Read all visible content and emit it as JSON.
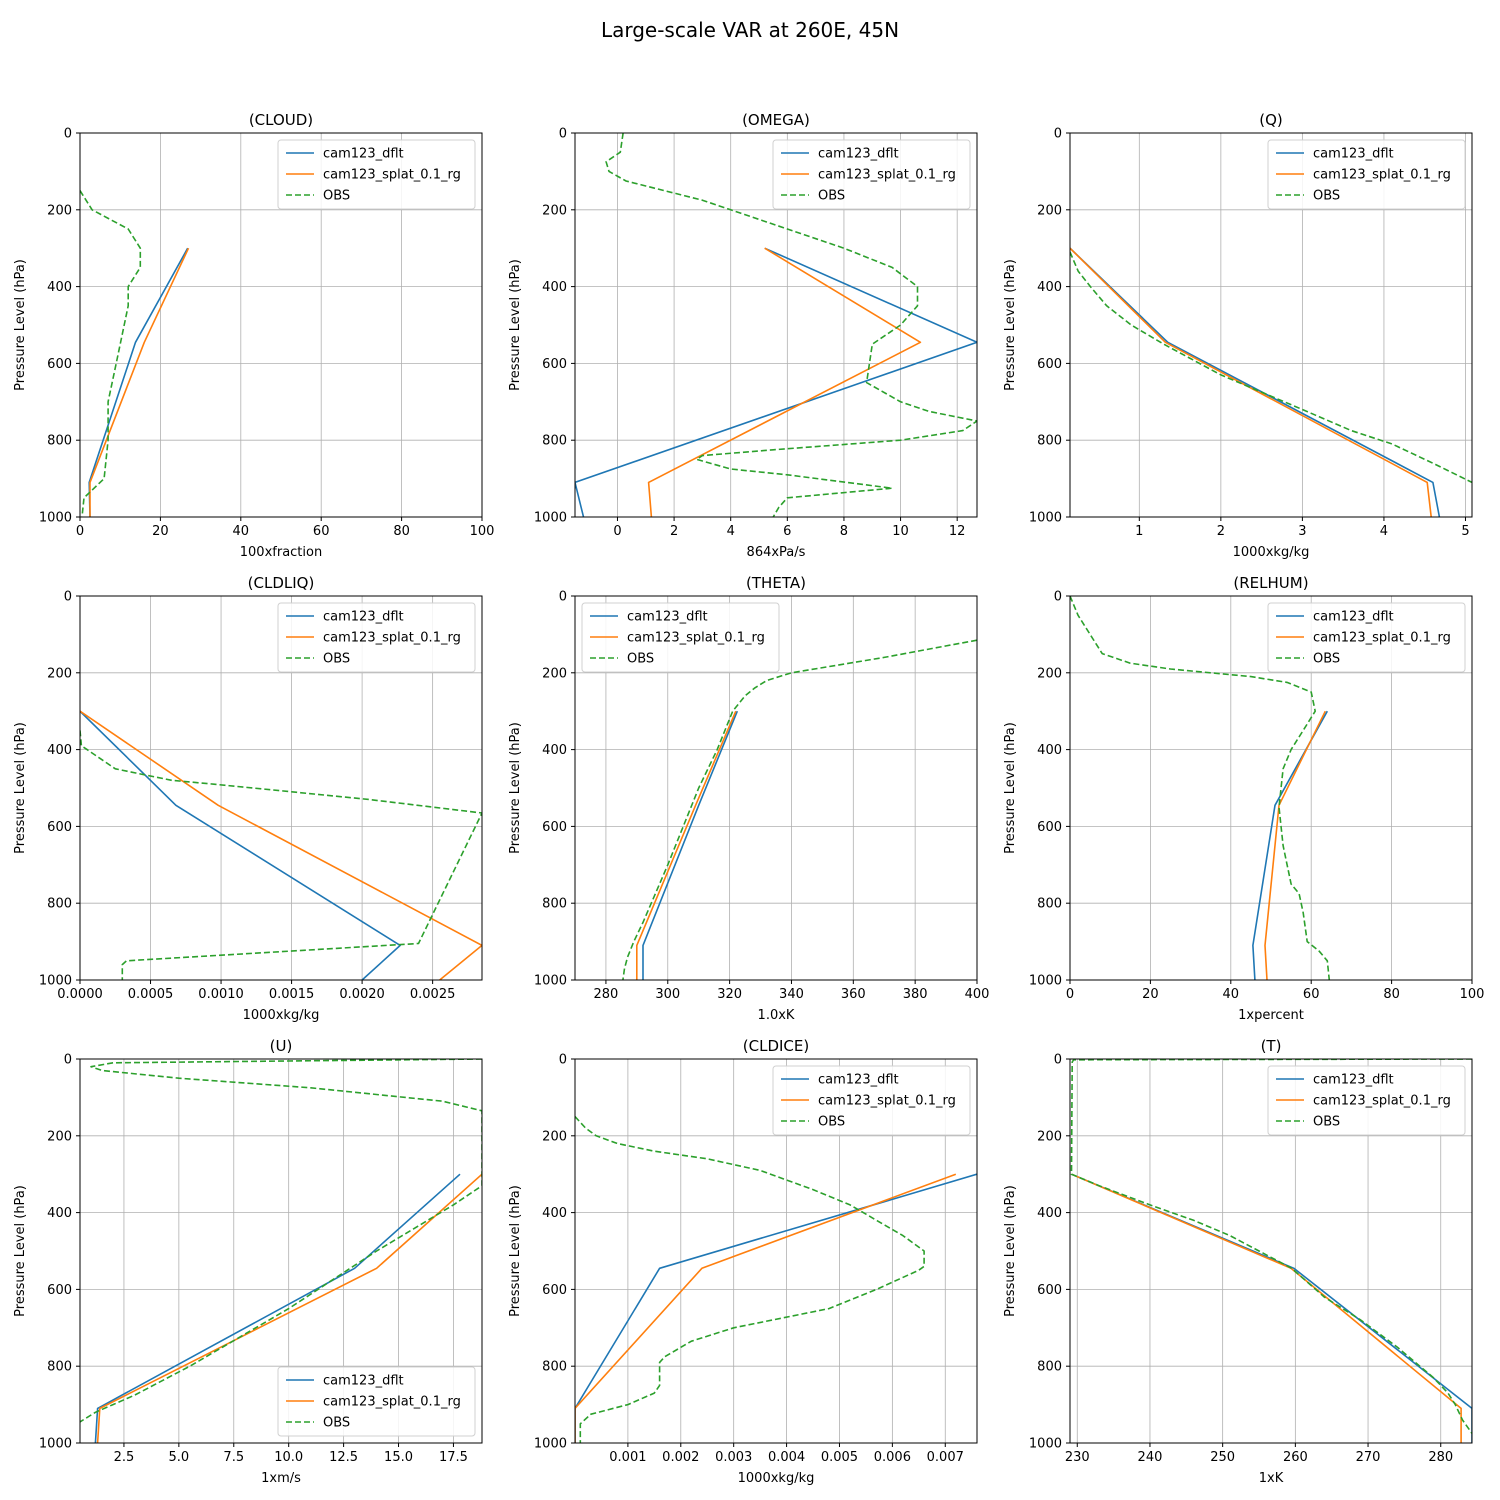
{
  "figure_title": "Large-scale VAR at 260E, 45N",
  "colors": {
    "model1": "#1f77b4",
    "model2": "#ff7f0e",
    "obs": "#2ca02c",
    "grid": "#b0b0b0"
  },
  "legend_labels": [
    "cam123_dflt",
    "cam123_splat_0.1_rg",
    "OBS"
  ],
  "chart_data": [
    {
      "type": "line",
      "title": "(CLOUD)",
      "xlabel": "100xfraction",
      "ylabel": "Pressure Level (hPa)",
      "xlim": [
        0,
        100
      ],
      "ylim": [
        1000,
        0
      ],
      "xticks": [
        0,
        20,
        40,
        60,
        80,
        100
      ],
      "xtick_labels": [
        "0",
        "20",
        "40",
        "60",
        "80",
        "100"
      ],
      "yticks": [
        0,
        200,
        400,
        600,
        800,
        1000
      ],
      "ytick_labels": [
        "0",
        "200",
        "400",
        "600",
        "800",
        "1000"
      ],
      "grid": true,
      "legend_position": "top-right",
      "series": [
        {
          "name": "cam123_dflt",
          "style": "solid",
          "x": [
            26.8,
            13.8,
            2.3,
            2.5
          ],
          "y": [
            300,
            545,
            910,
            1000
          ]
        },
        {
          "name": "cam123_splat_0.1_rg",
          "style": "solid",
          "x": [
            27,
            16,
            2.5,
            2.5
          ],
          "y": [
            300,
            545,
            910,
            1000
          ]
        },
        {
          "name": "OBS",
          "style": "dashed",
          "x": [
            0,
            3,
            12,
            15,
            15,
            12,
            12,
            9,
            7,
            7,
            6,
            1,
            0.5
          ],
          "y": [
            150,
            200,
            250,
            300,
            350,
            400,
            450,
            600,
            700,
            800,
            900,
            950,
            1000
          ]
        }
      ]
    },
    {
      "type": "line",
      "title": "(OMEGA)",
      "xlabel": "864xPa/s",
      "ylabel": "Pressure Level (hPa)",
      "xlim": [
        -1.5,
        12.7
      ],
      "ylim": [
        1000,
        0
      ],
      "xticks": [
        0,
        2,
        4,
        6,
        8,
        10,
        12
      ],
      "xtick_labels": [
        "0",
        "2",
        "4",
        "6",
        "8",
        "10",
        "12"
      ],
      "yticks": [
        0,
        200,
        400,
        600,
        800,
        1000
      ],
      "ytick_labels": [
        "0",
        "200",
        "400",
        "600",
        "800",
        "1000"
      ],
      "grid": true,
      "legend_position": "top-right",
      "series": [
        {
          "name": "cam123_dflt",
          "style": "solid",
          "x": [
            5.2,
            12.7,
            -1.5,
            -1.2
          ],
          "y": [
            300,
            545,
            910,
            1000
          ]
        },
        {
          "name": "cam123_splat_0.1_rg",
          "style": "solid",
          "x": [
            5.2,
            10.7,
            1.1,
            1.2
          ],
          "y": [
            300,
            545,
            910,
            1000
          ]
        },
        {
          "name": "OBS",
          "style": "dashed",
          "x": [
            0.2,
            0.1,
            -0.4,
            -0.3,
            0.3,
            3,
            4,
            6,
            8,
            9.7,
            10.6,
            10.6,
            10,
            9,
            8.8,
            10,
            11,
            12.7,
            12.2,
            10,
            5.5,
            3,
            2.8,
            4,
            6,
            9.7,
            6,
            5.7,
            5.5
          ],
          "y": [
            0,
            50,
            75,
            100,
            125,
            175,
            200,
            250,
            300,
            350,
            400,
            450,
            500,
            550,
            650,
            700,
            725,
            750,
            775,
            800,
            825,
            840,
            850,
            875,
            890,
            925,
            950,
            975,
            1000
          ]
        }
      ]
    },
    {
      "type": "line",
      "title": "(Q)",
      "xlabel": "1000xkg/kg",
      "ylabel": "Pressure Level (hPa)",
      "xlim": [
        0.15,
        5.08
      ],
      "ylim": [
        1000,
        0
      ],
      "xticks": [
        1,
        2,
        3,
        4,
        5
      ],
      "xtick_labels": [
        "1",
        "2",
        "3",
        "4",
        "5"
      ],
      "yticks": [
        0,
        200,
        400,
        600,
        800,
        1000
      ],
      "ytick_labels": [
        "0",
        "200",
        "400",
        "600",
        "800",
        "1000"
      ],
      "grid": true,
      "legend_position": "top-right",
      "series": [
        {
          "name": "cam123_dflt",
          "style": "solid",
          "x": [
            0.15,
            1.35,
            4.6,
            4.68
          ],
          "y": [
            300,
            545,
            910,
            1000
          ]
        },
        {
          "name": "cam123_splat_0.1_rg",
          "style": "solid",
          "x": [
            0.15,
            1.32,
            4.53,
            4.58
          ],
          "y": [
            300,
            545,
            910,
            1000
          ]
        },
        {
          "name": "OBS",
          "style": "dashed",
          "x": [
            0.15,
            0.25,
            0.4,
            0.6,
            0.9,
            1.3,
            2.0,
            3.0,
            3.6,
            4.1,
            4.6,
            5.08
          ],
          "y": [
            310,
            360,
            400,
            450,
            500,
            550,
            630,
            720,
            775,
            810,
            860,
            910
          ]
        }
      ]
    },
    {
      "type": "line",
      "title": "(CLDLIQ)",
      "xlabel": "1000xkg/kg",
      "ylabel": "Pressure Level (hPa)",
      "xlim": [
        0,
        0.00285
      ],
      "ylim": [
        1000,
        0
      ],
      "xticks": [
        0,
        0.0005,
        0.001,
        0.0015,
        0.002,
        0.0025
      ],
      "xtick_labels": [
        "0.0000",
        "0.0005",
        "0.0010",
        "0.0015",
        "0.0020",
        "0.0025"
      ],
      "yticks": [
        0,
        200,
        400,
        600,
        800,
        1000
      ],
      "ytick_labels": [
        "0",
        "200",
        "400",
        "600",
        "800",
        "1000"
      ],
      "grid": true,
      "legend_position": "top-right",
      "series": [
        {
          "name": "cam123_dflt",
          "style": "solid",
          "x": [
            0,
            0.00068,
            0.00227,
            0.002
          ],
          "y": [
            300,
            545,
            910,
            1000
          ]
        },
        {
          "name": "cam123_splat_0.1_rg",
          "style": "solid",
          "x": [
            0,
            0.00098,
            0.00285,
            0.00255
          ],
          "y": [
            300,
            545,
            910,
            1000
          ]
        },
        {
          "name": "OBS",
          "style": "dashed",
          "x": [
            0,
            1e-05,
            5e-05,
            0.00015,
            0.00025,
            0.00045,
            0.00065,
            0.00095,
            0.0015,
            0.00205,
            0.00285,
            0.0024,
            0.00033,
            0.0003,
            0.0003
          ],
          "y": [
            350,
            390,
            400,
            425,
            450,
            465,
            480,
            490,
            510,
            530,
            565,
            905,
            950,
            960,
            1000
          ]
        }
      ]
    },
    {
      "type": "line",
      "title": "(THETA)",
      "xlabel": "1.0xK",
      "ylabel": "Pressure Level (hPa)",
      "xlim": [
        270,
        400
      ],
      "ylim": [
        1000,
        0
      ],
      "xticks": [
        280,
        300,
        320,
        340,
        360,
        380,
        400
      ],
      "xtick_labels": [
        "280",
        "300",
        "320",
        "340",
        "360",
        "380",
        "400"
      ],
      "yticks": [
        0,
        200,
        400,
        600,
        800,
        1000
      ],
      "ytick_labels": [
        "0",
        "200",
        "400",
        "600",
        "800",
        "1000"
      ],
      "grid": true,
      "legend_position": "top-left",
      "series": [
        {
          "name": "cam123_dflt",
          "style": "solid",
          "x": [
            322.5,
            310,
            292,
            292
          ],
          "y": [
            300,
            545,
            910,
            1000
          ]
        },
        {
          "name": "cam123_splat_0.1_rg",
          "style": "solid",
          "x": [
            322,
            309,
            290,
            290
          ],
          "y": [
            300,
            545,
            910,
            1000
          ]
        },
        {
          "name": "OBS",
          "style": "dashed",
          "x": [
            400,
            390,
            370,
            355,
            340,
            332,
            328,
            325,
            321,
            316,
            310,
            300,
            292,
            289,
            287,
            286,
            285.5
          ],
          "y": [
            115,
            130,
            160,
            180,
            200,
            220,
            240,
            260,
            300,
            400,
            500,
            700,
            850,
            900,
            940,
            970,
            1000
          ]
        }
      ]
    },
    {
      "type": "line",
      "title": "(RELHUM)",
      "xlabel": "1xpercent",
      "ylabel": "Pressure Level (hPa)",
      "xlim": [
        0,
        100
      ],
      "ylim": [
        1000,
        0
      ],
      "xticks": [
        0,
        20,
        40,
        60,
        80,
        100
      ],
      "xtick_labels": [
        "0",
        "20",
        "40",
        "60",
        "80",
        "100"
      ],
      "yticks": [
        0,
        200,
        400,
        600,
        800,
        1000
      ],
      "ytick_labels": [
        "0",
        "200",
        "400",
        "600",
        "800",
        "1000"
      ],
      "grid": true,
      "legend_position": "top-right",
      "series": [
        {
          "name": "cam123_dflt",
          "style": "solid",
          "x": [
            64,
            51,
            45.5,
            46
          ],
          "y": [
            300,
            545,
            910,
            1000
          ]
        },
        {
          "name": "cam123_splat_0.1_rg",
          "style": "solid",
          "x": [
            63.5,
            52,
            48.5,
            49
          ],
          "y": [
            300,
            545,
            910,
            1000
          ]
        },
        {
          "name": "OBS",
          "style": "dashed",
          "x": [
            0,
            2,
            5,
            8,
            15,
            25,
            35,
            45,
            54,
            60,
            61,
            58,
            55,
            53,
            52,
            53,
            55,
            57,
            58,
            59,
            62,
            64,
            64.5
          ],
          "y": [
            0,
            50,
            100,
            150,
            175,
            190,
            200,
            210,
            225,
            250,
            300,
            350,
            400,
            450,
            550,
            650,
            750,
            775,
            825,
            900,
            925,
            950,
            1000
          ]
        }
      ]
    },
    {
      "type": "line",
      "title": "(U)",
      "xlabel": "1xm/s",
      "ylabel": "Pressure Level (hPa)",
      "xlim": [
        0.5,
        18.8
      ],
      "ylim": [
        1000,
        0
      ],
      "xticks": [
        2.5,
        5,
        7.5,
        10,
        12.5,
        15,
        17.5
      ],
      "xtick_labels": [
        "2.5",
        "5.0",
        "7.5",
        "10.0",
        "12.5",
        "15.0",
        "17.5"
      ],
      "yticks": [
        0,
        200,
        400,
        600,
        800,
        1000
      ],
      "ytick_labels": [
        "0",
        "200",
        "400",
        "600",
        "800",
        "1000"
      ],
      "grid": true,
      "legend_position": "bottom-right",
      "series": [
        {
          "name": "cam123_dflt",
          "style": "solid",
          "x": [
            17.8,
            13,
            1.3,
            1.2
          ],
          "y": [
            300,
            545,
            910,
            1000
          ]
        },
        {
          "name": "cam123_splat_0.1_rg",
          "style": "solid",
          "x": [
            18.8,
            14,
            1.4,
            1.3
          ],
          "y": [
            300,
            545,
            910,
            1000
          ]
        },
        {
          "name": "OBS",
          "style": "dashed",
          "x": [
            18.8,
            2,
            1,
            1.5,
            5,
            11,
            17,
            18.8,
            18.8,
            17.5,
            14,
            10,
            7,
            5.5,
            3,
            2,
            1.2,
            0.5
          ],
          "y": [
            0,
            10,
            20,
            30,
            50,
            75,
            110,
            135,
            330,
            380,
            500,
            650,
            750,
            800,
            875,
            900,
            920,
            945
          ]
        }
      ]
    },
    {
      "type": "line",
      "title": "(CLDICE)",
      "xlabel": "1000xkg/kg",
      "ylabel": "Pressure Level (hPa)",
      "xlim": [
        0,
        0.0076
      ],
      "ylim": [
        1000,
        0
      ],
      "xticks": [
        0.001,
        0.002,
        0.003,
        0.004,
        0.005,
        0.006,
        0.007
      ],
      "xtick_labels": [
        "0.001",
        "0.002",
        "0.003",
        "0.004",
        "0.005",
        "0.006",
        "0.007"
      ],
      "yticks": [
        0,
        200,
        400,
        600,
        800,
        1000
      ],
      "ytick_labels": [
        "0",
        "200",
        "400",
        "600",
        "800",
        "1000"
      ],
      "grid": true,
      "legend_position": "top-right",
      "series": [
        {
          "name": "cam123_dflt",
          "style": "solid",
          "x": [
            0.0076,
            0.0016,
            0,
            0
          ],
          "y": [
            300,
            545,
            910,
            1000
          ]
        },
        {
          "name": "cam123_splat_0.1_rg",
          "style": "solid",
          "x": [
            0.0072,
            0.0024,
            0,
            0
          ],
          "y": [
            300,
            545,
            910,
            1000
          ]
        },
        {
          "name": "OBS",
          "style": "dashed",
          "x": [
            0,
            0.0002,
            0.0004,
            0.0008,
            0.0015,
            0.0025,
            0.0035,
            0.0045,
            0.0052,
            0.0057,
            0.0062,
            0.0066,
            0.0066,
            0.0065,
            0.0057,
            0.0048,
            0.003,
            0.0022,
            0.0017,
            0.0016,
            0.0016,
            0.0015,
            0.001,
            0.0003,
            0.0001,
            0.0001
          ],
          "y": [
            150,
            180,
            200,
            220,
            240,
            260,
            290,
            340,
            380,
            420,
            460,
            500,
            540,
            550,
            600,
            650,
            700,
            735,
            775,
            790,
            850,
            870,
            900,
            925,
            950,
            1000
          ]
        }
      ]
    },
    {
      "type": "line",
      "title": "(T)",
      "xlabel": "1xK",
      "ylabel": "Pressure Level (hPa)",
      "xlim": [
        229,
        284.3
      ],
      "ylim": [
        1000,
        0
      ],
      "xticks": [
        230,
        240,
        250,
        260,
        270,
        280
      ],
      "xtick_labels": [
        "230",
        "240",
        "250",
        "260",
        "270",
        "280"
      ],
      "yticks": [
        0,
        200,
        400,
        600,
        800,
        1000
      ],
      "ytick_labels": [
        "0",
        "200",
        "400",
        "600",
        "800",
        "1000"
      ],
      "grid": true,
      "legend_position": "top-right",
      "series": [
        {
          "name": "cam123_dflt",
          "style": "solid",
          "x": [
            229.2,
            259.8,
            284.3,
            284.3
          ],
          "y": [
            300,
            545,
            910,
            1000
          ]
        },
        {
          "name": "cam123_splat_0.1_rg",
          "style": "solid",
          "x": [
            229.2,
            259.4,
            282.8,
            282.8
          ],
          "y": [
            300,
            545,
            910,
            1000
          ]
        },
        {
          "name": "OBS",
          "style": "dashed",
          "x": [
            284.3,
            229.5,
            229.4,
            229.3,
            229.2,
            233,
            240,
            246,
            251,
            255,
            259.5,
            261,
            264,
            269,
            274,
            279,
            281,
            282,
            283,
            284.3
          ],
          "y": [
            0,
            2,
            5,
            8,
            300,
            330,
            380,
            420,
            460,
            500,
            545,
            570,
            620,
            680,
            750,
            830,
            870,
            900,
            940,
            975
          ]
        }
      ]
    }
  ]
}
